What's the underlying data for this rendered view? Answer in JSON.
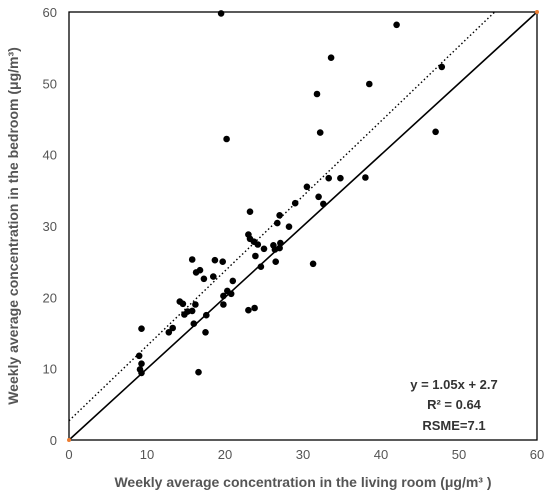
{
  "chart_data": {
    "type": "scatter",
    "xlabel": "Weekly average concentration in the living room (μg/m³ )",
    "ylabel": "Weekly average concentration in the bedroom (μg/m³)",
    "xlim": [
      0,
      60
    ],
    "ylim": [
      0,
      60
    ],
    "xticks": [
      "0",
      "10",
      "20",
      "30",
      "40",
      "50",
      "60"
    ],
    "yticks": [
      "0",
      "10",
      "20",
      "30",
      "40",
      "50",
      "60"
    ],
    "grid": false,
    "annotations": {
      "equation": "y = 1.05x + 2.7",
      "r_squared": "R² = 0.64",
      "rsme": "RSME=7.1"
    },
    "reference_line": {
      "type": "1:1",
      "slope": 1,
      "intercept": 0
    },
    "regression_line": {
      "slope": 1.05,
      "intercept": 2.7
    },
    "points": [
      [
        19.5,
        59.8
      ],
      [
        42,
        58.2
      ],
      [
        47.8,
        52.3
      ],
      [
        33.6,
        53.6
      ],
      [
        31.8,
        48.5
      ],
      [
        38.5,
        49.9
      ],
      [
        20.2,
        42.2
      ],
      [
        32.2,
        43.1
      ],
      [
        47,
        43.2
      ],
      [
        33.3,
        36.7
      ],
      [
        34.8,
        36.7
      ],
      [
        38,
        36.8
      ],
      [
        30.5,
        35.5
      ],
      [
        32,
        34.1
      ],
      [
        32.6,
        33.1
      ],
      [
        29,
        33.2
      ],
      [
        23.2,
        32
      ],
      [
        27,
        31.5
      ],
      [
        26.7,
        30.4
      ],
      [
        28.2,
        29.9
      ],
      [
        23,
        28.8
      ],
      [
        23.2,
        28.2
      ],
      [
        23.7,
        27.8
      ],
      [
        24.2,
        27.4
      ],
      [
        26.2,
        27.3
      ],
      [
        27.1,
        27.6
      ],
      [
        26.4,
        26.7
      ],
      [
        25,
        26.8
      ],
      [
        27,
        26.9
      ],
      [
        23.9,
        25.8
      ],
      [
        26.5,
        25
      ],
      [
        31.3,
        24.7
      ],
      [
        24.6,
        24.3
      ],
      [
        15.8,
        25.3
      ],
      [
        18.7,
        25.2
      ],
      [
        19.7,
        25
      ],
      [
        16.3,
        23.5
      ],
      [
        16.8,
        23.8
      ],
      [
        18.5,
        22.9
      ],
      [
        17.3,
        22.6
      ],
      [
        21,
        22.3
      ],
      [
        20.3,
        20.9
      ],
      [
        19.8,
        20.2
      ],
      [
        20.8,
        20.5
      ],
      [
        14.2,
        19.4
      ],
      [
        14.6,
        19.1
      ],
      [
        15.2,
        18
      ],
      [
        16.2,
        19
      ],
      [
        19.8,
        19
      ],
      [
        15.8,
        18.1
      ],
      [
        14.8,
        17.6
      ],
      [
        17.6,
        17.5
      ],
      [
        23,
        18.2
      ],
      [
        23.8,
        18.5
      ],
      [
        16,
        16.3
      ],
      [
        9.3,
        15.6
      ],
      [
        13.3,
        15.7
      ],
      [
        12.8,
        15.1
      ],
      [
        17.5,
        15.1
      ],
      [
        9,
        11.8
      ],
      [
        9.3,
        10.7
      ],
      [
        9.1,
        9.9
      ],
      [
        9.3,
        9.4
      ],
      [
        16.6,
        9.5
      ]
    ]
  }
}
